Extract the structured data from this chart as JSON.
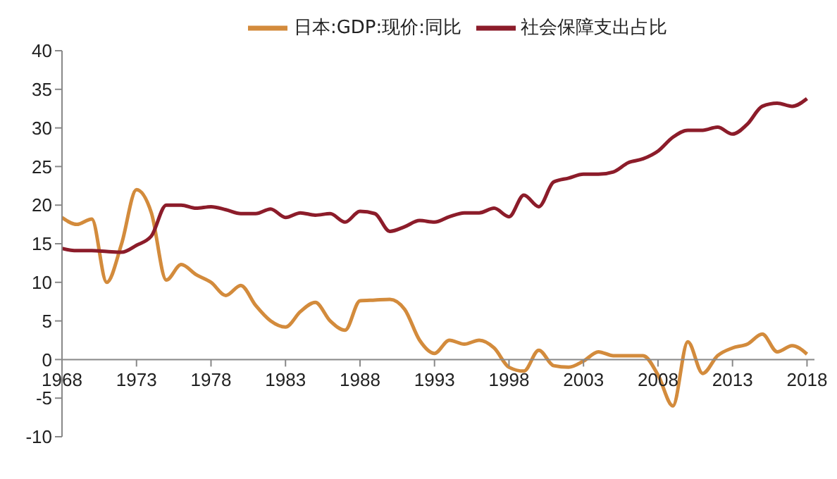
{
  "chart_data": {
    "type": "line",
    "x": [
      1968,
      1969,
      1970,
      1971,
      1972,
      1973,
      1974,
      1975,
      1976,
      1977,
      1978,
      1979,
      1980,
      1981,
      1982,
      1983,
      1984,
      1985,
      1986,
      1987,
      1988,
      1989,
      1990,
      1991,
      1992,
      1993,
      1994,
      1995,
      1996,
      1997,
      1998,
      1999,
      2000,
      2001,
      2002,
      2003,
      2004,
      2005,
      2006,
      2007,
      2008,
      2009,
      2010,
      2011,
      2012,
      2013,
      2014,
      2015,
      2016,
      2017,
      2018
    ],
    "series": [
      {
        "name": "日本:GDP:现价:同比",
        "color": "#d38b3c",
        "values": [
          18.4,
          17.5,
          18.2,
          10,
          15,
          22,
          19,
          10.3,
          12.3,
          11,
          10,
          8.3,
          9.6,
          7,
          5,
          4.2,
          6.2,
          7.4,
          5,
          3.8,
          7.6,
          7.7,
          7.8,
          6.5,
          2.5,
          0.8,
          2.5,
          2,
          2.5,
          1.5,
          -1,
          -1.5,
          1.2,
          -0.8,
          -1,
          -0.2,
          1,
          0.5,
          0.5,
          0.5,
          -2,
          -6,
          2.3,
          -1.8,
          0.5,
          1.5,
          2,
          3.3,
          1,
          1.8,
          0.7
        ]
      },
      {
        "name": "社会保障支出占比",
        "color": "#8c1c2a",
        "values": [
          14.4,
          14.1,
          14.1,
          14,
          13.9,
          14.8,
          16,
          20,
          20,
          19.6,
          19.8,
          19.4,
          18.9,
          18.9,
          19.5,
          18.4,
          19,
          18.7,
          18.9,
          17.8,
          19.2,
          18.9,
          16.6,
          17.2,
          18,
          17.8,
          18.5,
          19,
          19,
          19.6,
          18.5,
          21.3,
          19.8,
          23,
          23.5,
          24,
          24,
          24.3,
          25.5,
          26,
          27,
          28.8,
          29.7,
          29.7,
          30.1,
          29.2,
          30.5,
          32.8,
          33.2,
          32.8,
          33.8
        ]
      }
    ],
    "xlim": [
      1968,
      2018.5
    ],
    "xticks": [
      1968,
      1973,
      1978,
      1983,
      1988,
      1993,
      1998,
      2003,
      2008,
      2013,
      2018
    ],
    "ylim": [
      -10,
      40
    ],
    "yticks": [
      -10,
      -5,
      0,
      5,
      10,
      15,
      20,
      25,
      30,
      35,
      40
    ],
    "grid": false,
    "legend": "top",
    "marker": "none",
    "line_style": "solid"
  }
}
